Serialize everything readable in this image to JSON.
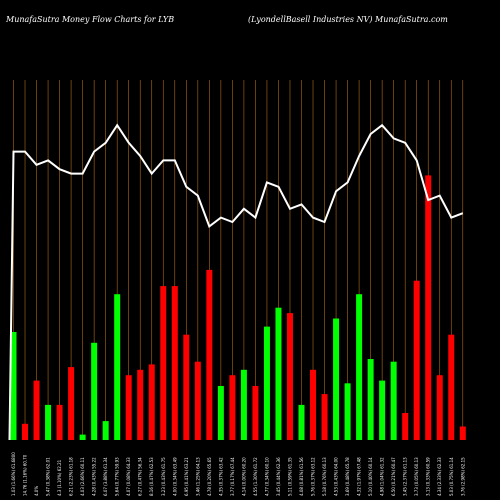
{
  "chart_data": {
    "type": "bar",
    "title_left": "MunafaSutra  Money Flow  Charts for LYB",
    "title_right": "(LyondellBasell Industries NV) MunafaSutra.com",
    "xlabel": "",
    "ylabel": "",
    "grid": true,
    "colors": {
      "background": "#000000",
      "grid": "#b06a10",
      "up": "#00ff00",
      "down": "#ff0000",
      "line": "#ffffff",
      "text": "#ffffff"
    },
    "bars": {
      "ylim": [
        0,
        100
      ],
      "values": [
        40,
        6,
        22,
        13,
        13,
        27,
        2,
        36,
        7,
        54,
        24,
        26,
        28,
        57,
        57,
        39,
        29,
        63,
        20,
        24,
        26,
        20,
        42,
        49,
        47,
        13,
        26,
        17,
        45,
        21,
        54,
        30,
        22,
        29,
        10,
        59,
        98,
        24,
        39,
        5
      ],
      "directions": [
        "up",
        "down",
        "down",
        "up",
        "down",
        "down",
        "up",
        "up",
        "up",
        "up",
        "down",
        "down",
        "down",
        "down",
        "down",
        "down",
        "down",
        "down",
        "up",
        "down",
        "up",
        "down",
        "up",
        "up",
        "down",
        "up",
        "down",
        "down",
        "up",
        "up",
        "up",
        "up",
        "up",
        "up",
        "down",
        "down",
        "down",
        "down",
        "down",
        "down"
      ]
    },
    "line": {
      "ylim": [
        0,
        100
      ],
      "values": [
        81,
        81,
        78,
        79,
        77,
        76,
        76,
        81,
        83,
        87,
        83,
        80,
        76,
        79,
        79,
        73,
        71,
        64,
        66,
        65,
        68,
        66,
        74,
        73,
        68,
        69,
        66,
        65,
        72,
        74,
        80,
        85,
        87,
        84,
        83,
        79,
        70,
        71,
        66,
        67
      ]
    },
    "categories": [
      "1.03 (1.66%) 61.6800",
      "14.76 (1.16%) 60.70",
      "4.0%",
      "5.47 (0.38%) 62.01",
      "4.3 (1.10%) 62.21",
      "6.21 (2.23%) 61.18",
      "4.03 (2.66%) 60.11",
      "4.28 (0.43%) 55.22",
      "6.07 (3.88%) 61.34",
      "5.64 (0.77%) 59.93",
      "4.07 (0.08%) 64.33",
      "6.27 (0.47%) 56.34",
      "8.16 (0.47%) 62.53",
      "3.23 (0.43%) 61.75",
      "4.00 (0.34%) 63.49",
      "6.95 (0.41%) 63.21",
      "3.46 (1.25%) 64.13",
      "4.78 (0.20%) 65.65",
      "4.35 (0.37%) 63.42",
      "3.77 (0.17%) 67.44",
      "4.14 (0.00%) 60.20",
      "4.55 (1.30%) 61.72",
      "4.77 (0.34%) 60.10",
      "3.45 (0.44%) 62.36",
      "5.11 (0.59%) 61.35",
      "4.08 (0.81%) 61.56",
      "5.76 (0.37%) 63.12",
      "5.18 (0.76%) 60.13",
      "4.53 (0.43%) 64.00",
      "3.69 (0.48%) 65.78",
      "4.32 (1.97%) 67.48",
      "5.10 (0.40%) 60.14",
      "4.98 (1.04%) 61.32",
      "6.50 (0.21%) 60.47",
      "3.45 (2.37%) 61.13",
      "3.73 (0.05%) 60.13",
      "3.13 (0.33%) 60.59",
      "4.34 (2.33%) 62.33",
      "5.03 (0.75%) 61.14",
      "3.76 (2.98%) 62.15"
    ]
  }
}
